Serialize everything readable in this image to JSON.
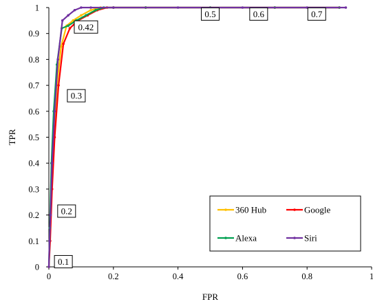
{
  "chart_data": {
    "type": "line",
    "xlabel": "FPR",
    "ylabel": "TPR",
    "xlim": [
      0,
      1
    ],
    "ylim": [
      0,
      1
    ],
    "x_ticks": [
      "0",
      "0.2",
      "0.4",
      "0.6",
      "0.8",
      "1"
    ],
    "y_ticks": [
      "0",
      "0.1",
      "0.2",
      "0.3",
      "0.4",
      "0.5",
      "0.6",
      "0.7",
      "0.8",
      "0.9",
      "1"
    ],
    "grid": false,
    "legend_position": "bottom-right",
    "series": [
      {
        "name": "360 Hub",
        "color": "#ffc000",
        "x": [
          0,
          0.003,
          0.008,
          0.015,
          0.025,
          0.038,
          0.055,
          0.075,
          0.1,
          0.13,
          0.16,
          0.2,
          0.3,
          0.5,
          0.7,
          0.9
        ],
        "y": [
          0,
          0.1,
          0.3,
          0.5,
          0.7,
          0.85,
          0.93,
          0.95,
          0.97,
          0.99,
          1.0,
          1.0,
          1.0,
          1.0,
          1.0,
          1.0
        ]
      },
      {
        "name": "Google",
        "color": "#ff0000",
        "x": [
          0,
          0.004,
          0.01,
          0.018,
          0.03,
          0.045,
          0.065,
          0.09,
          0.12,
          0.15,
          0.18,
          0.2,
          0.3,
          0.5,
          0.7,
          0.9
        ],
        "y": [
          0,
          0.1,
          0.3,
          0.5,
          0.7,
          0.86,
          0.92,
          0.95,
          0.97,
          0.99,
          1.0,
          1.0,
          1.0,
          1.0,
          1.0,
          1.0
        ]
      },
      {
        "name": "Alexa",
        "color": "#00a050",
        "x": [
          0,
          0.003,
          0.008,
          0.015,
          0.025,
          0.04,
          0.06,
          0.085,
          0.115,
          0.145,
          0.17,
          0.2,
          0.3,
          0.5,
          0.7,
          0.9
        ],
        "y": [
          0,
          0.15,
          0.4,
          0.6,
          0.78,
          0.92,
          0.93,
          0.95,
          0.97,
          0.99,
          1.0,
          1.0,
          1.0,
          1.0,
          1.0,
          1.0
        ]
      },
      {
        "name": "Siri",
        "color": "#7030a0",
        "x": [
          0,
          0.002,
          0.005,
          0.01,
          0.018,
          0.028,
          0.042,
          0.06,
          0.08,
          0.1,
          0.13,
          0.2,
          0.4,
          0.6,
          0.8,
          0.92
        ],
        "y": [
          0,
          0.1,
          0.2,
          0.4,
          0.6,
          0.8,
          0.95,
          0.97,
          0.99,
          1.0,
          1.0,
          1.0,
          1.0,
          1.0,
          1.0,
          1.0
        ]
      }
    ],
    "annotations": [
      {
        "text": "0.1",
        "x": 0.045,
        "y": 0.02
      },
      {
        "text": "0.2",
        "x": 0.055,
        "y": 0.215
      },
      {
        "text": "0.3",
        "x": 0.085,
        "y": 0.66
      },
      {
        "text": "0.42",
        "x": 0.115,
        "y": 0.925
      },
      {
        "text": "0.5",
        "x": 0.5,
        "y": 0.975
      },
      {
        "text": "0.6",
        "x": 0.65,
        "y": 0.975
      },
      {
        "text": "0.7",
        "x": 0.83,
        "y": 0.975
      }
    ]
  }
}
